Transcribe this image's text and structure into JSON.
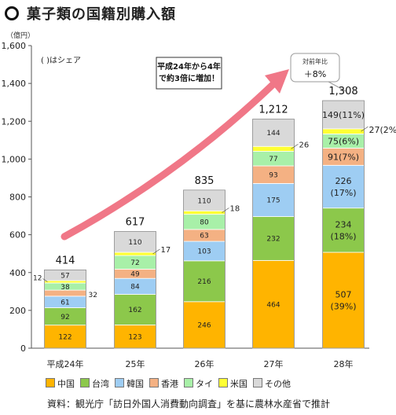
{
  "title": "菓子類の国籍別購入額",
  "chart_data": {
    "type": "bar",
    "stacked": true,
    "unit_label": "（億円）",
    "share_note": "(  )はシェア",
    "categories": [
      "平成24年",
      "25年",
      "26年",
      "27年",
      "28年"
    ],
    "totals": [
      "414",
      "617",
      "835",
      "1,212",
      "1,308"
    ],
    "ylim": [
      0,
      1600
    ],
    "yticks": [
      0,
      200,
      400,
      600,
      800,
      1000,
      1200,
      1400,
      1600
    ],
    "ytick_labels": [
      "0",
      "200",
      "400",
      "600",
      "800",
      "1,000",
      "1,200",
      "1,400",
      "1,600"
    ],
    "series": [
      {
        "name": "中国",
        "color": "#ffb400",
        "values": [
          122,
          123,
          246,
          464,
          507
        ],
        "labels": [
          "122",
          "123",
          "246",
          "464",
          "507\n(39%)"
        ]
      },
      {
        "name": "台湾",
        "color": "#8cc84b",
        "values": [
          92,
          162,
          216,
          232,
          234
        ],
        "labels": [
          "92",
          "162",
          "216",
          "232",
          "234\n(18%)"
        ]
      },
      {
        "name": "韓国",
        "color": "#9ecdf3",
        "values": [
          61,
          84,
          103,
          175,
          226
        ],
        "labels": [
          "61",
          "84",
          "103",
          "175",
          "226\n(17%)"
        ]
      },
      {
        "name": "香港",
        "color": "#f4b183",
        "values": [
          32,
          49,
          63,
          93,
          91
        ],
        "labels": [
          "32",
          "49",
          "63",
          "93",
          "91(7%)"
        ]
      },
      {
        "name": "タイ",
        "color": "#a8f0a8",
        "values": [
          38,
          72,
          80,
          77,
          75
        ],
        "labels": [
          "38",
          "72",
          "80",
          "77",
          "75(6%)"
        ]
      },
      {
        "name": "米国",
        "color": "#ffff33",
        "values": [
          12,
          17,
          18,
          26,
          27
        ],
        "labels": [
          "12",
          "17",
          "18",
          "26",
          "27(2%)"
        ]
      },
      {
        "name": "その他",
        "color": "#d9d9d9",
        "values": [
          57,
          110,
          110,
          144,
          149
        ],
        "labels": [
          "57",
          "110",
          "110",
          "144",
          "149(11%)"
        ]
      }
    ],
    "annotation": {
      "text": "平成24年から4年\nで約3倍に増加！"
    },
    "yoy": {
      "label": "対前年比",
      "value": "＋8%"
    }
  },
  "legend_items": [
    {
      "name": "中国",
      "color": "#ffb400"
    },
    {
      "name": "台湾",
      "color": "#8cc84b"
    },
    {
      "name": "韓国",
      "color": "#9ecdf3"
    },
    {
      "name": "香港",
      "color": "#f4b183"
    },
    {
      "name": "タイ",
      "color": "#a8f0a8"
    },
    {
      "name": "米国",
      "color": "#ffff33"
    },
    {
      "name": "その他",
      "color": "#d9d9d9"
    }
  ],
  "source": "資料：観光庁「訪日外国人消費動向調査」を基に農林水産省で推計"
}
